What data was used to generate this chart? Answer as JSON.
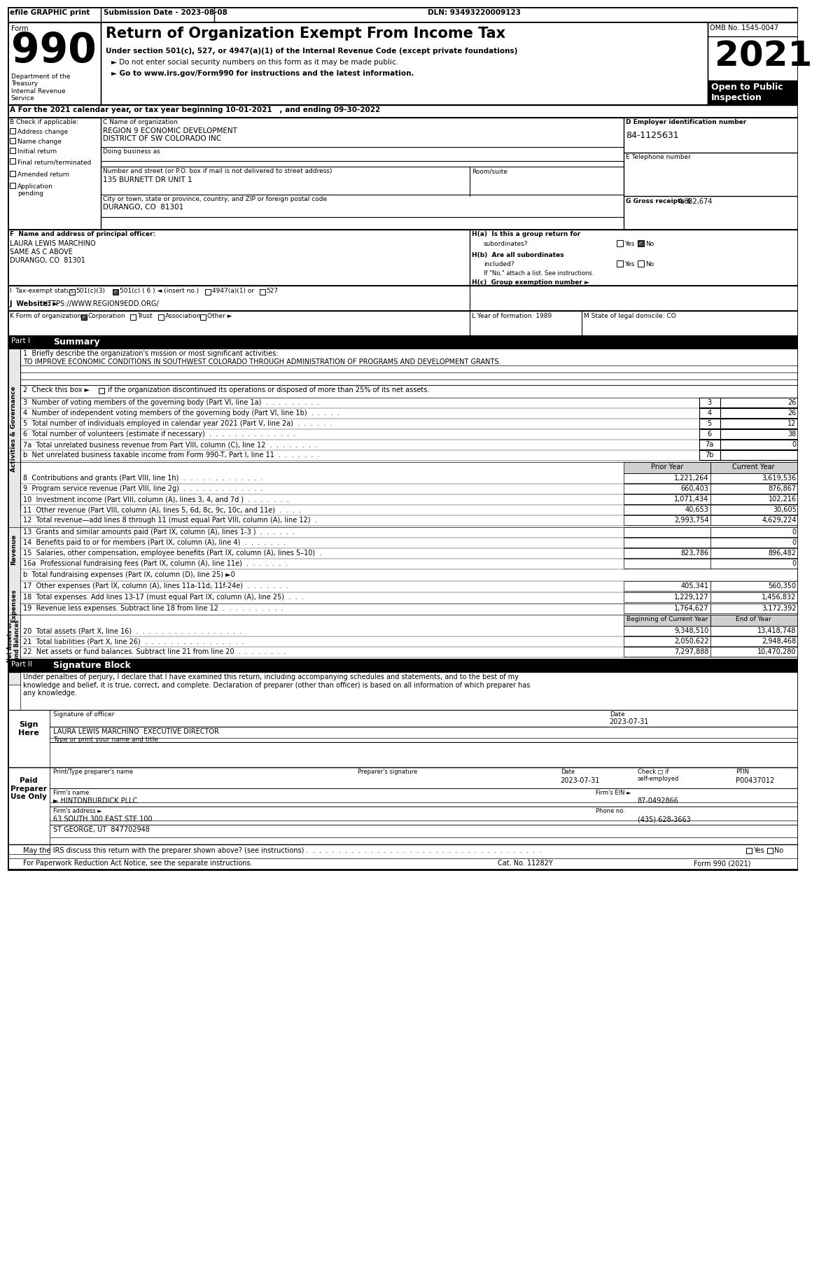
{
  "header_top": "efile GRAPHIC print",
  "submission_date": "Submission Date - 2023-08-08",
  "dln": "DLN: 93493220009123",
  "form_number": "990",
  "form_label": "Form",
  "title": "Return of Organization Exempt From Income Tax",
  "subtitle1": "Under section 501(c), 527, or 4947(a)(1) of the Internal Revenue Code (except private foundations)",
  "subtitle2": "► Do not enter social security numbers on this form as it may be made public.",
  "subtitle3": "► Go to www.irs.gov/Form990 for instructions and the latest information.",
  "omb": "OMB No. 1545-0047",
  "year": "2021",
  "open_public": "Open to Public\nInspection",
  "dept": "Department of the\nTreasury\nInternal Revenue\nService",
  "tax_year_line": "A For the 2021 calendar year, or tax year beginning 10-01-2021   , and ending 09-30-2022",
  "b_label": "B Check if applicable:",
  "b_items": [
    "Address change",
    "Name change",
    "Initial return",
    "Final return/terminated",
    "Amended return",
    "Application\npending"
  ],
  "c_label": "C Name of organization",
  "org_name1": "REGION 9 ECONOMIC DEVELOPMENT",
  "org_name2": "DISTRICT OF SW COLORADO INC",
  "dba_label": "Doing business as",
  "address_label": "Number and street (or P.O. box if mail is not delivered to street address)",
  "address": "135 BURNETT DR UNIT 1",
  "room_label": "Room/suite",
  "city_label": "City or town, state or province, country, and ZIP or foreign postal code",
  "city": "DURANGO, CO  81301",
  "d_label": "D Employer identification number",
  "ein": "84-1125631",
  "e_label": "E Telephone number",
  "g_label": "G Gross receipts $",
  "gross_receipts": "4,632,674",
  "f_label": "F  Name and address of principal officer:",
  "officer_name": "LAURA LEWIS MARCHINO",
  "officer_addr1": "SAME AS C ABOVE",
  "officer_addr2": "DURANGO, CO  81301",
  "ha_label": "H(a)  Is this a group return for",
  "ha_sub": "subordinates?",
  "ha_yes": "Yes",
  "ha_no": "No",
  "ha_checked": "No",
  "hb_label": "H(b)  Are all subordinates",
  "hb_sub": "included?",
  "hb_yes": "Yes",
  "hb_no": "No",
  "hb_note": "If \"No,\" attach a list. See instructions.",
  "hc_label": "H(c)  Group exemption number ►",
  "i_label": "I  Tax-exempt status:",
  "i_options": [
    "501(c)(3)",
    "501(c) ( 6 ) ◄ (insert no.)",
    "4947(a)(1) or",
    "527"
  ],
  "i_checked": "501(c) ( 6 )",
  "j_label": "J  Website: ►",
  "website": "HTTPS://WWW.REGION9EDD.ORG/",
  "k_label": "K Form of organization:",
  "k_options": [
    "Corporation",
    "Trust",
    "Association",
    "Other ►"
  ],
  "k_checked": "Corporation",
  "l_label": "L Year of formation: 1989",
  "m_label": "M State of legal domicile: CO",
  "part1_label": "Part I",
  "part1_title": "Summary",
  "line1_label": "1  Briefly describe the organization's mission or most significant activities:",
  "line1_text": "TO IMPROVE ECONOMIC CONDITIONS IN SOUTHWEST COLORADO THROUGH ADMINISTRATION OF PROGRAMS AND DEVELOPMENT GRANTS.",
  "line2_text": " if the organization discontinued its operations or disposed of more than 25% of its net assets.",
  "line3_label": "3  Number of voting members of the governing body (Part VI, line 1a)  .  .  .  .  .  .  .  .  .",
  "line3_num": "3",
  "line3_val": "26",
  "line4_label": "4  Number of independent voting members of the governing body (Part VI, line 1b)  .  .  .  .  .",
  "line4_num": "4",
  "line4_val": "26",
  "line5_label": "5  Total number of individuals employed in calendar year 2021 (Part V, line 2a)  .  .  .  .  .  .",
  "line5_num": "5",
  "line5_val": "12",
  "line6_label": "6  Total number of volunteers (estimate if necessary)  .  .  .  .  .  .  .  .  .  .  .  .  .  .",
  "line6_num": "6",
  "line6_val": "38",
  "line7a_label": "7a  Total unrelated business revenue from Part VIII, column (C), line 12  .  .  .  .  .  .  .  .",
  "line7a_num": "7a",
  "line7a_val": "0",
  "line7b_label": "b  Net unrelated business taxable income from Form 990-T, Part I, line 11  .  .  .  .  .  .  .",
  "line7b_num": "7b",
  "line7b_val": "",
  "rev_header_prior": "Prior Year",
  "rev_header_current": "Current Year",
  "line8_label": "8  Contributions and grants (Part VIII, line 1h)  .  .  .  .  .  .  .  .  .  .  .  .  .",
  "line8_prior": "1,221,264",
  "line8_current": "3,619,536",
  "line9_label": "9  Program service revenue (Part VIII, line 2g)  .  .  .  .  .  .  .  .  .  .  .  .  .",
  "line9_prior": "660,403",
  "line9_current": "876,867",
  "line10_label": "10  Investment income (Part VIII, column (A), lines 3, 4, and 7d )  .  .  .  .  .  .  .",
  "line10_prior": "1,071,434",
  "line10_current": "102,216",
  "line11_label": "11  Other revenue (Part VIII, column (A), lines 5, 6d, 8c, 9c, 10c, and 11e)  .  .  .  .",
  "line11_prior": "40,653",
  "line11_current": "30,605",
  "line12_label": "12  Total revenue—add lines 8 through 11 (must equal Part VIII, column (A), line 12)  .",
  "line12_prior": "2,993,754",
  "line12_current": "4,629,224",
  "line13_label": "13  Grants and similar amounts paid (Part IX, column (A), lines 1-3 )  .  .  .  .  .  .",
  "line13_prior": "",
  "line13_current": "0",
  "line14_label": "14  Benefits paid to or for members (Part IX, column (A), line 4)  .  .  .  .  .  .  .",
  "line14_prior": "",
  "line14_current": "0",
  "line15_label": "15  Salaries, other compensation, employee benefits (Part IX, column (A), lines 5–10)  .",
  "line15_prior": "823,786",
  "line15_current": "896,482",
  "line16a_label": "16a  Professional fundraising fees (Part IX, column (A), line 11e)  .  .  .  .  .  .  .",
  "line16a_prior": "",
  "line16a_current": "0",
  "line16b_label": "b  Total fundraising expenses (Part IX, column (D), line 25) ►0",
  "line17_label": "17  Other expenses (Part IX, column (A), lines 11a-11d, 11f-24e)  .  .  .  .  .  .  .",
  "line17_prior": "405,341",
  "line17_current": "560,350",
  "line18_label": "18  Total expenses. Add lines 13-17 (must equal Part IX, column (A), line 25)  .  .  .",
  "line18_prior": "1,229,127",
  "line18_current": "1,456,832",
  "line19_label": "19  Revenue less expenses. Subtract line 18 from line 12  .  .  .  .  .  .  .  .  .  .",
  "line19_prior": "1,764,627",
  "line19_current": "3,172,392",
  "assets_header_begin": "Beginning of Current Year",
  "assets_header_end": "End of Year",
  "line20_label": "20  Total assets (Part X, line 16)  .  .  .  .  .  .  .  .  .  .  .  .  .  .  .  .  .",
  "line20_begin": "9,348,510",
  "line20_end": "13,418,748",
  "line21_label": "21  Total liabilities (Part X, line 26)  .  .  .  .  .  .  .  .  .  .  .  .  .  .  .  .",
  "line21_begin": "2,050,622",
  "line21_end": "2,948,468",
  "line22_label": "22  Net assets or fund balances. Subtract line 21 from line 20  .  .  .  .  .  .  .  .",
  "line22_begin": "7,297,888",
  "line22_end": "10,470,280",
  "part2_label": "Part II",
  "part2_title": "Signature Block",
  "sig_text": "Under penalties of perjury, I declare that I have examined this return, including accompanying schedules and statements, and to the best of my\nknowledge and belief, it is true, correct, and complete. Declaration of preparer (other than officer) is based on all information of which preparer has\nany knowledge.",
  "sign_here": "Sign\nHere",
  "sig_date": "2023-07-31",
  "sig_name": "LAURA LEWIS MARCHINO  EXECUTIVE DIRECTOR",
  "sig_type": "Type or print your name and title",
  "paid_preparer": "Paid\nPreparer\nUse Only",
  "preparer_name_label": "Print/Type preparer's name",
  "preparer_sig_label": "Preparer's signature",
  "preparer_date_label": "Date",
  "preparer_check_label": "Check □ if\nself-employed",
  "ptin_label": "PTIN",
  "preparer_name": "",
  "preparer_sig": "",
  "preparer_date": "2023-07-31",
  "ptin": "P00437012",
  "firm_name_label": "Firm's name",
  "firm_name": "► HINTONBURDICK PLLC",
  "firm_ein_label": "Firm's EIN ►",
  "firm_ein": "87-0492866",
  "firm_addr_label": "Firm's address ►",
  "firm_addr": "63 SOUTH 300 EAST STE 100",
  "firm_city": "ST GEORGE, UT  847702948",
  "phone_label": "Phone no.",
  "phone": "(435) 628-3663",
  "irs_discuss": "May the IRS discuss this return with the preparer shown above? (see instructions) .  .  .  .  .  .  .  .  .  .  .  .  .  .  .  .  .  .  .  .  .  .  .  .  .  .  .  .  .  .  .  .  .  .  .  .  .",
  "irs_yes": "Yes",
  "irs_no": "No",
  "footer1": "For Paperwork Reduction Act Notice, see the separate instructions.",
  "footer_cat": "Cat. No. 11282Y",
  "footer_form": "Form 990 (2021)",
  "bg_color": "#ffffff",
  "border_color": "#000000",
  "header_bg": "#000000",
  "header_text_color": "#ffffff",
  "shaded_bg": "#d0d0d0"
}
